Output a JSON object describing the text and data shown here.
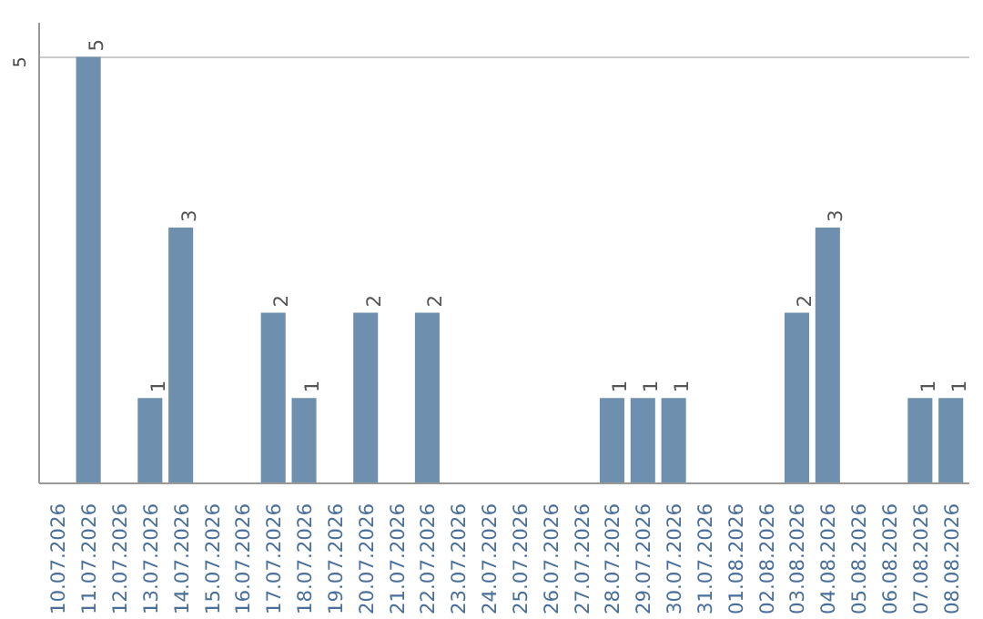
{
  "chart_data": {
    "type": "bar",
    "categories": [
      "10.07.2026",
      "11.07.2026",
      "12.07.2026",
      "13.07.2026",
      "14.07.2026",
      "15.07.2026",
      "16.07.2026",
      "17.07.2026",
      "18.07.2026",
      "19.07.2026",
      "20.07.2026",
      "21.07.2026",
      "22.07.2026",
      "23.07.2026",
      "24.07.2026",
      "25.07.2026",
      "26.07.2026",
      "27.07.2026",
      "28.07.2026",
      "29.07.2026",
      "30.07.2026",
      "31.07.2026",
      "01.08.2026",
      "02.08.2026",
      "03.08.2026",
      "04.08.2026",
      "05.08.2026",
      "06.08.2026",
      "07.08.2026",
      "08.08.2026"
    ],
    "values": [
      0,
      5,
      0,
      1,
      3,
      0,
      0,
      2,
      1,
      0,
      2,
      0,
      2,
      0,
      0,
      0,
      0,
      0,
      1,
      1,
      1,
      0,
      0,
      0,
      2,
      3,
      0,
      0,
      1,
      1
    ],
    "value_labels": [
      null,
      "5",
      null,
      "1",
      "3",
      null,
      null,
      "2",
      "1",
      null,
      "2",
      null,
      "2",
      null,
      null,
      null,
      null,
      null,
      "1",
      "1",
      "1",
      null,
      null,
      null,
      "2",
      "3",
      null,
      null,
      "1",
      "1"
    ],
    "color": "#6e8fad",
    "ylim": [
      0,
      5.4
    ],
    "yticks": [
      5
    ],
    "grid": "y"
  }
}
